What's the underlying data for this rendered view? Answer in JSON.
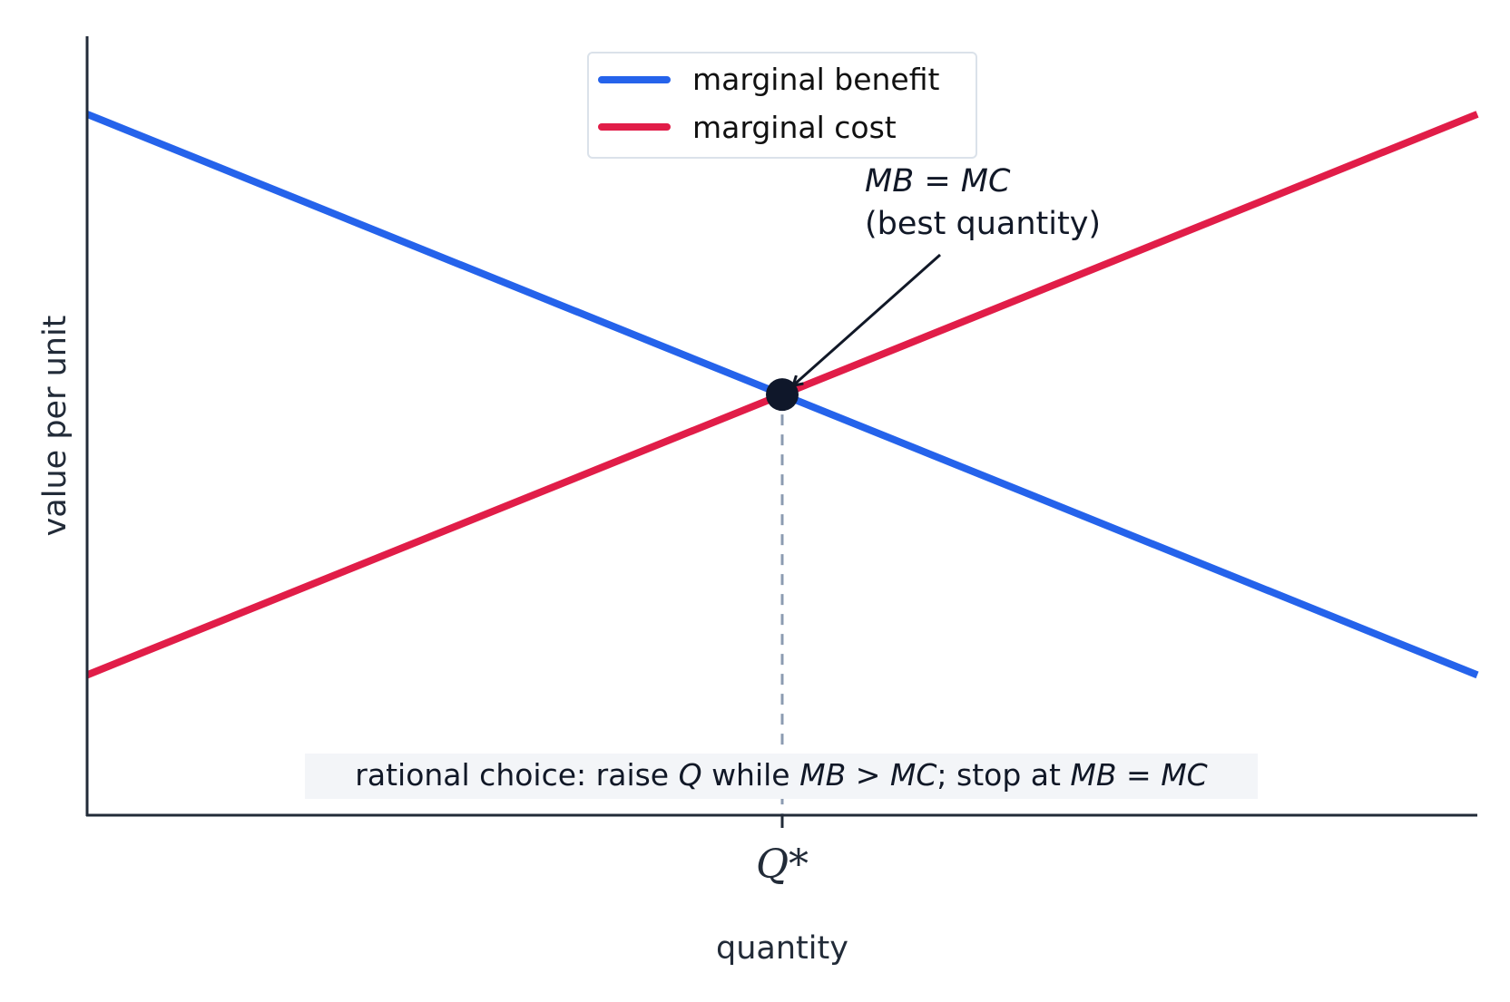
{
  "chart_data": {
    "type": "line",
    "xlabel": "quantity",
    "ylabel": "value per unit",
    "xlim": [
      0,
      10
    ],
    "ylim": [
      0,
      10
    ],
    "x_ticks": [
      {
        "x": 5,
        "label": "Q*"
      }
    ],
    "grid": false,
    "legend_position": "top-center",
    "series": [
      {
        "name": "marginal benefit",
        "color": "#2563eb",
        "x": [
          0,
          10
        ],
        "y": [
          9,
          1.8
        ]
      },
      {
        "name": "marginal cost",
        "color": "#e11d48",
        "x": [
          0,
          10
        ],
        "y": [
          1.8,
          9
        ]
      }
    ],
    "equilibrium": {
      "x": 5,
      "y": 5.4,
      "color": "#0f172a"
    },
    "guide_line": {
      "x": 5,
      "style": "dashed",
      "color": "#94a3b8"
    },
    "annotation": {
      "line1": {
        "mb": "MB",
        "eq": " = ",
        "mc": "MC"
      },
      "line2": "(best quantity)",
      "point_x": 5,
      "point_y": 5.4
    },
    "note": {
      "t1": "rational choice: raise ",
      "q": "Q",
      "t2": " while ",
      "mb1": "MB",
      "gt": " > ",
      "mc1": "MC",
      "t3": "; stop at ",
      "mb2": "MB",
      "eq": " = ",
      "mc2": "MC"
    }
  }
}
